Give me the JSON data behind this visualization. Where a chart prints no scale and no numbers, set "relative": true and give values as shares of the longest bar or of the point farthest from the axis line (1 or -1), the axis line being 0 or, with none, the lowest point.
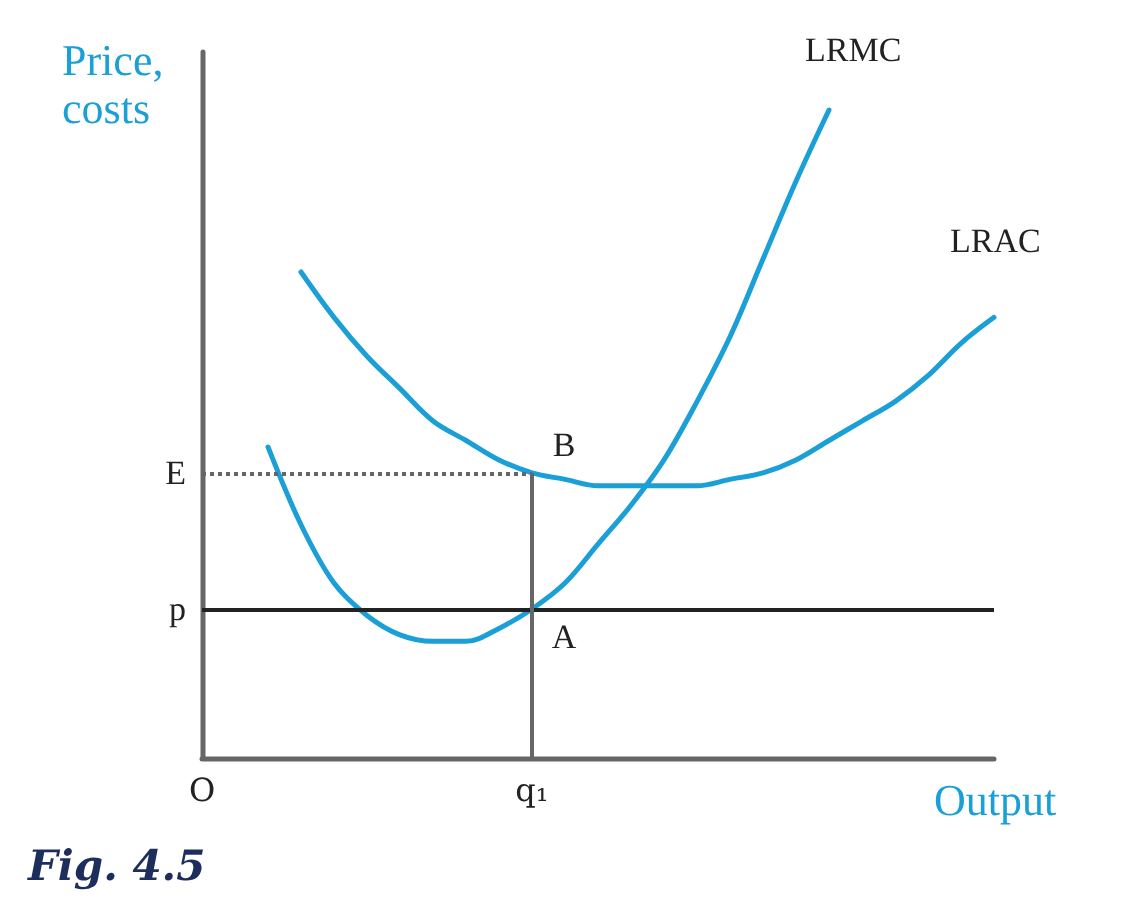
{
  "chart_data": {
    "type": "line",
    "relative": true,
    "xlabel": "Output",
    "ylabel": "Price,\ncosts",
    "legend": false,
    "marker": "none",
    "grid": false,
    "categories": [
      "O",
      null,
      null,
      null,
      null,
      null,
      null,
      null,
      null,
      null,
      "q₁",
      null,
      null,
      null,
      null,
      null,
      null,
      null,
      null,
      null,
      null,
      null,
      null,
      null,
      null
    ],
    "series": [
      {
        "name": "LRMC",
        "color": "#1a9fd6",
        "values": [
          null,
          null,
          0.48,
          0.36,
          0.27,
          0.22,
          0.19,
          0.18,
          0.18,
          0.2,
          0.23,
          0.27,
          0.33,
          0.39,
          0.46,
          0.55,
          0.65,
          0.77,
          0.89,
          1,
          null,
          null,
          null,
          null,
          null
        ]
      },
      {
        "name": "LRAC",
        "color": "#1a9fd6",
        "values": [
          null,
          null,
          null,
          0.75,
          0.68,
          0.62,
          0.57,
          0.52,
          0.49,
          0.46,
          0.44,
          0.43,
          0.42,
          0.42,
          0.42,
          0.42,
          0.43,
          0.44,
          0.46,
          0.49,
          0.52,
          0.55,
          0.59,
          0.64,
          0.68
        ]
      }
    ],
    "ref_lines": [
      {
        "axis": "y",
        "value": 0.44,
        "label": "E",
        "color": "#666666",
        "line_style": "dotted"
      },
      {
        "axis": "y",
        "value": 0.23,
        "label": "p",
        "color": "#222222",
        "line_style": "solid"
      },
      {
        "axis": "x",
        "value": "q₁",
        "color": "#666666",
        "line_style": "solid"
      }
    ],
    "annotations": [
      {
        "text": "B",
        "x": "q₁",
        "y": 0.44
      },
      {
        "text": "A",
        "x": "q₁",
        "y": 0.23
      },
      "Fig. 4.5"
    ]
  }
}
